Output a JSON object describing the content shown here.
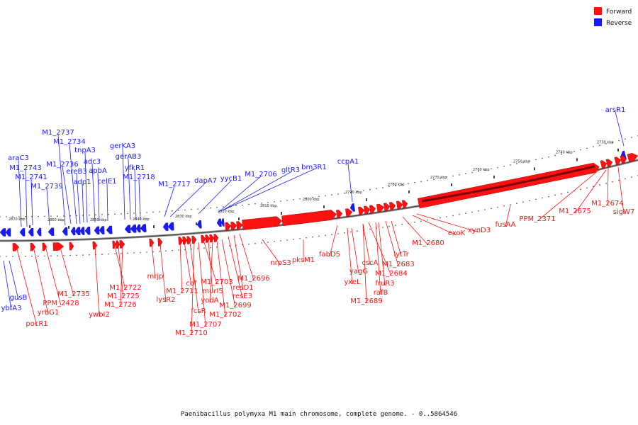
{
  "legend": {
    "forward": {
      "label": "Forward",
      "color": "#ff1111"
    },
    "reverse": {
      "label": "Reverse",
      "color": "#1a1aff"
    }
  },
  "caption": "Paenibacillus polymyxa M1 main chromosome, complete genome. - 0..5864546",
  "ticks": [
    "2870 kbp",
    "2860 kbp",
    "2850 kbp",
    "2840 kbp",
    "2830 kbp",
    "2820 kbp",
    "2810 kbp",
    "2800 kbp",
    "2790 kbp",
    "2780 kbp",
    "2770 kbp",
    "2760 kbp",
    "2750 kbp",
    "2740 kbp",
    "2730 kbp"
  ],
  "reverse_labels": [
    "gusB",
    "ybfA3",
    "araC3",
    "M1_2743",
    "M1_2741",
    "M1_2739",
    "M1_2737",
    "M1_2736",
    "M1_2734",
    "ereB3",
    "tnpA3",
    "adp1",
    "adc3",
    "apbA",
    "celE1",
    "gerKA3",
    "gerAB3",
    "yfkR1",
    "M1_2718",
    "M1_2717",
    "dapA7",
    "yycB1",
    "M1_2706",
    "gltR3",
    "bm3R1",
    "ccpA1",
    "arsR1"
  ],
  "forward_labels": [
    "pocR1",
    "yrbG1",
    "PPM_2428",
    "M1_2735",
    "ywbI2",
    "M1_2722",
    "M1_2725",
    "M1_2726",
    "mrjp",
    "lysR2",
    "M1_2711",
    "cof",
    "fcsR",
    "M1_2710",
    "M1_2707",
    "M1_2703",
    "murI5",
    "yodA",
    "M1_2702",
    "M1_2699",
    "resE3",
    "resD1",
    "M1_2696",
    "nrpS3",
    "pksM1",
    "fabD5",
    "yagG",
    "yxeL",
    "cscA",
    "M1_2689",
    "M1_2684",
    "rafB",
    "fruR3",
    "M1_2683",
    "lytTr",
    "M1_2680",
    "exoK",
    "xynD3",
    "fusAA",
    "PPM_2371",
    "M1_2675",
    "M1_2674",
    "sigW7"
  ]
}
